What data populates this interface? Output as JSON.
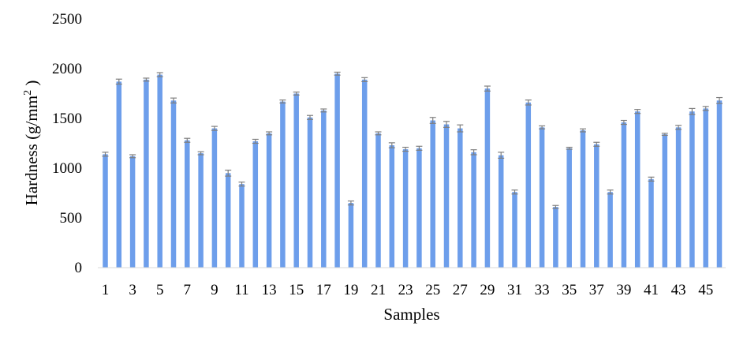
{
  "chart_data": {
    "type": "bar",
    "title": "",
    "xlabel": "Samples",
    "ylabel": "Hardness (g/mm",
    "ylabel_superscript": "2",
    "ylabel_suffix": " )",
    "ylim": [
      0,
      2500
    ],
    "yticks": [
      0,
      500,
      1000,
      1500,
      2000,
      2500
    ],
    "ytick_labels": [
      "0",
      "500",
      "1000",
      "1500",
      "2000",
      "2500"
    ],
    "grid": false,
    "legend": "none",
    "bar_color": "#6d9eeb",
    "error_bar_color": "#7f7f7f",
    "categories": [
      "1",
      "2",
      "3",
      "4",
      "5",
      "6",
      "7",
      "8",
      "9",
      "10",
      "11",
      "12",
      "13",
      "14",
      "15",
      "16",
      "17",
      "18",
      "19",
      "20",
      "21",
      "22",
      "23",
      "24",
      "25",
      "26",
      "27",
      "28",
      "29",
      "30",
      "31",
      "32",
      "33",
      "34",
      "35",
      "36",
      "37",
      "38",
      "39",
      "40",
      "41",
      "42",
      "43",
      "44",
      "45",
      "46"
    ],
    "xtick_labels": [
      "1",
      "3",
      "5",
      "7",
      "9",
      "11",
      "13",
      "15",
      "17",
      "19",
      "21",
      "23",
      "25",
      "27",
      "29",
      "31",
      "33",
      "35",
      "37",
      "39",
      "41",
      "43",
      "45"
    ],
    "xtick_categories": [
      "1",
      "3",
      "5",
      "7",
      "9",
      "11",
      "13",
      "15",
      "17",
      "19",
      "21",
      "23",
      "25",
      "27",
      "29",
      "31",
      "33",
      "35",
      "37",
      "39",
      "41",
      "43",
      "45"
    ],
    "values": [
      1140,
      1870,
      1120,
      1890,
      1940,
      1680,
      1280,
      1150,
      1400,
      950,
      840,
      1270,
      1350,
      1670,
      1750,
      1510,
      1580,
      1950,
      650,
      1890,
      1350,
      1230,
      1190,
      1200,
      1480,
      1440,
      1400,
      1160,
      1800,
      1130,
      760,
      1660,
      1410,
      610,
      1200,
      1380,
      1240,
      760,
      1460,
      1570,
      890,
      1340,
      1410,
      1570,
      1600,
      1680
    ],
    "errors": [
      20,
      25,
      15,
      15,
      20,
      25,
      20,
      15,
      20,
      30,
      20,
      20,
      15,
      15,
      15,
      20,
      15,
      15,
      20,
      20,
      15,
      25,
      20,
      20,
      30,
      30,
      35,
      25,
      25,
      30,
      20,
      25,
      15,
      15,
      10,
      15,
      20,
      20,
      20,
      20,
      20,
      10,
      20,
      30,
      20,
      30
    ]
  }
}
